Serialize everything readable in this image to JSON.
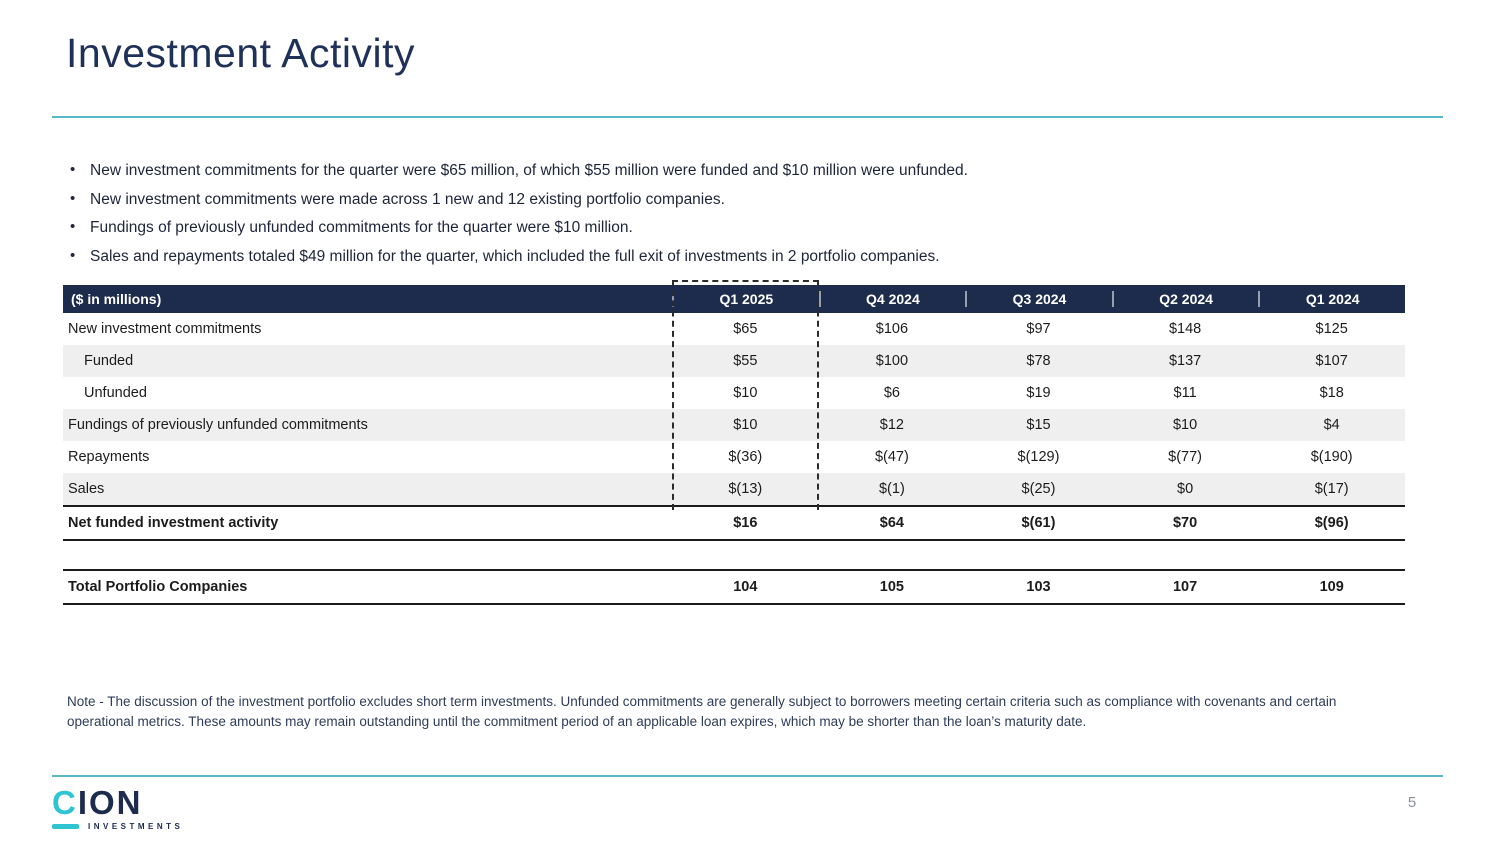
{
  "slide": {
    "title": "Investment Activity",
    "page_number": "5",
    "note": "Note - The discussion of the investment portfolio excludes short term investments. Unfunded commitments are generally subject to borrowers meeting certain criteria such as compliance with covenants and certain operational metrics. These amounts may remain outstanding until the commitment period of an applicable loan expires, which may be shorter than the loan’s maturity date."
  },
  "bullets": [
    "New investment commitments for the quarter were $65 million, of which $55 million were funded and $10 million were unfunded.",
    "New investment commitments were made across 1 new and 12 existing portfolio companies.",
    "Fundings of previously unfunded commitments for the quarter were $10 million.",
    "Sales and repayments totaled $49 million for the quarter, which included the full exit of investments in 2 portfolio companies."
  ],
  "table": {
    "unit_label": "($ in millions)",
    "columns": [
      "Q1 2025",
      "Q4 2024",
      "Q3 2024",
      "Q2 2024",
      "Q1 2024"
    ],
    "rows": [
      {
        "label": "New investment commitments",
        "values": [
          "$65",
          "$106",
          "$97",
          "$148",
          "$125"
        ]
      },
      {
        "label": "Funded",
        "values": [
          "$55",
          "$100",
          "$78",
          "$137",
          "$107"
        ]
      },
      {
        "label": "Unfunded",
        "values": [
          "$10",
          "$6",
          "$19",
          "$11",
          "$18"
        ]
      },
      {
        "label": "Fundings of previously unfunded commitments",
        "values": [
          "$10",
          "$12",
          "$15",
          "$10",
          "$4"
        ]
      },
      {
        "label": "Repayments",
        "values": [
          "$(36)",
          "$(47)",
          "$(129)",
          "$(77)",
          "$(190)"
        ]
      },
      {
        "label": "Sales",
        "values": [
          "$(13)",
          "$(1)",
          "$(25)",
          "$0",
          "$(17)"
        ]
      }
    ],
    "net_row": {
      "label": "Net funded investment activity",
      "values": [
        "$16",
        "$64",
        "$(61)",
        "$70",
        "$(96)"
      ]
    },
    "total_row": {
      "label": "Total Portfolio Companies",
      "values": [
        "104",
        "105",
        "103",
        "107",
        "109"
      ]
    }
  },
  "logo": {
    "mark_c": "C",
    "mark_rest": "ION",
    "tagline": "INVESTMENTS"
  },
  "colors": {
    "navy_header": "#1d2b4d",
    "title_navy": "#1f3159",
    "teal_rule": "#58b7c9",
    "logo_teal": "#2fc4d2",
    "row_stripe": "#efefef",
    "page_number_gray": "#8b919c"
  }
}
